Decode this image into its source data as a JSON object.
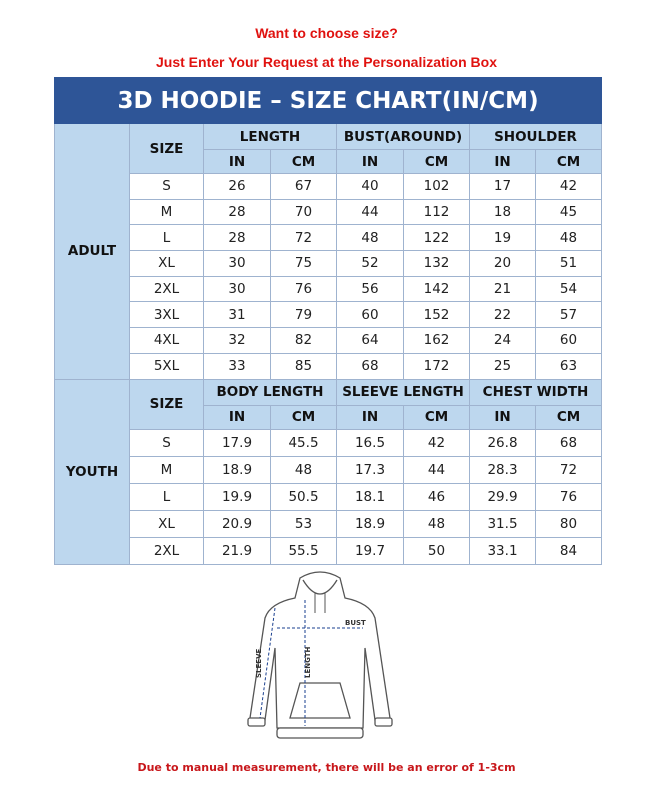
{
  "header": {
    "line1": "Want to choose size?",
    "line2": "Just Enter Your Request at the Personalization Box"
  },
  "table": {
    "title": "3D HOODIE – SIZE CHART(IN/CM)",
    "units": [
      "IN",
      "CM"
    ],
    "adult": {
      "label": "ADULT",
      "size_header": "SIZE",
      "groups": [
        "LENGTH",
        "BUST(AROUND)",
        "SHOULDER"
      ],
      "rows": [
        [
          "S",
          "26",
          "67",
          "40",
          "102",
          "17",
          "42"
        ],
        [
          "M",
          "28",
          "70",
          "44",
          "112",
          "18",
          "45"
        ],
        [
          "L",
          "28",
          "72",
          "48",
          "122",
          "19",
          "48"
        ],
        [
          "XL",
          "30",
          "75",
          "52",
          "132",
          "20",
          "51"
        ],
        [
          "2XL",
          "30",
          "76",
          "56",
          "142",
          "21",
          "54"
        ],
        [
          "3XL",
          "31",
          "79",
          "60",
          "152",
          "22",
          "57"
        ],
        [
          "4XL",
          "32",
          "82",
          "64",
          "162",
          "24",
          "60"
        ],
        [
          "5XL",
          "33",
          "85",
          "68",
          "172",
          "25",
          "63"
        ]
      ]
    },
    "youth": {
      "label": "YOUTH",
      "size_header": "SIZE",
      "groups": [
        "BODY LENGTH",
        "SLEEVE LENGTH",
        "CHEST WIDTH"
      ],
      "rows": [
        [
          "S",
          "17.9",
          "45.5",
          "16.5",
          "42",
          "26.8",
          "68"
        ],
        [
          "M",
          "18.9",
          "48",
          "17.3",
          "44",
          "28.3",
          "72"
        ],
        [
          "L",
          "19.9",
          "50.5",
          "18.1",
          "46",
          "29.9",
          "76"
        ],
        [
          "XL",
          "20.9",
          "53",
          "18.9",
          "48",
          "31.5",
          "80"
        ],
        [
          "2XL",
          "21.9",
          "55.5",
          "19.7",
          "50",
          "33.1",
          "84"
        ]
      ]
    }
  },
  "diagram": {
    "bust": "BUST",
    "length": "LENGTH",
    "sleeve": "SLEEVE"
  },
  "footer": "Due to manual measurement, there will be an error of 1-3cm"
}
